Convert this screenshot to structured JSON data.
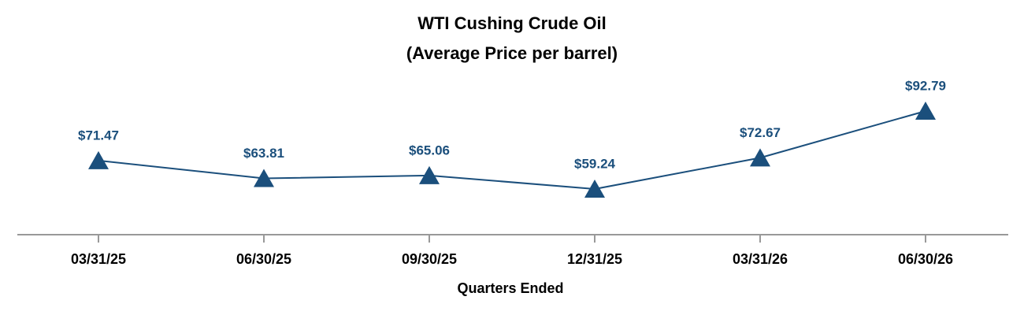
{
  "chart_data": {
    "type": "line",
    "title": "WTI Cushing Crude Oil",
    "subtitle": "(Average Price per barrel)",
    "x_label": "Quarters Ended",
    "categories": [
      "03/31/25",
      "06/30/25",
      "09/30/25",
      "12/31/25",
      "03/31/26",
      "06/30/26"
    ],
    "series": [
      {
        "name": "WTI Cushing Crude Oil",
        "color": "#1b4f7c",
        "values": [
          71.47,
          63.81,
          65.06,
          59.24,
          72.67,
          92.79
        ],
        "value_labels": [
          "$71.47",
          "$63.81",
          "$65.06",
          "$59.24",
          "$72.67",
          "$92.79"
        ]
      }
    ]
  }
}
